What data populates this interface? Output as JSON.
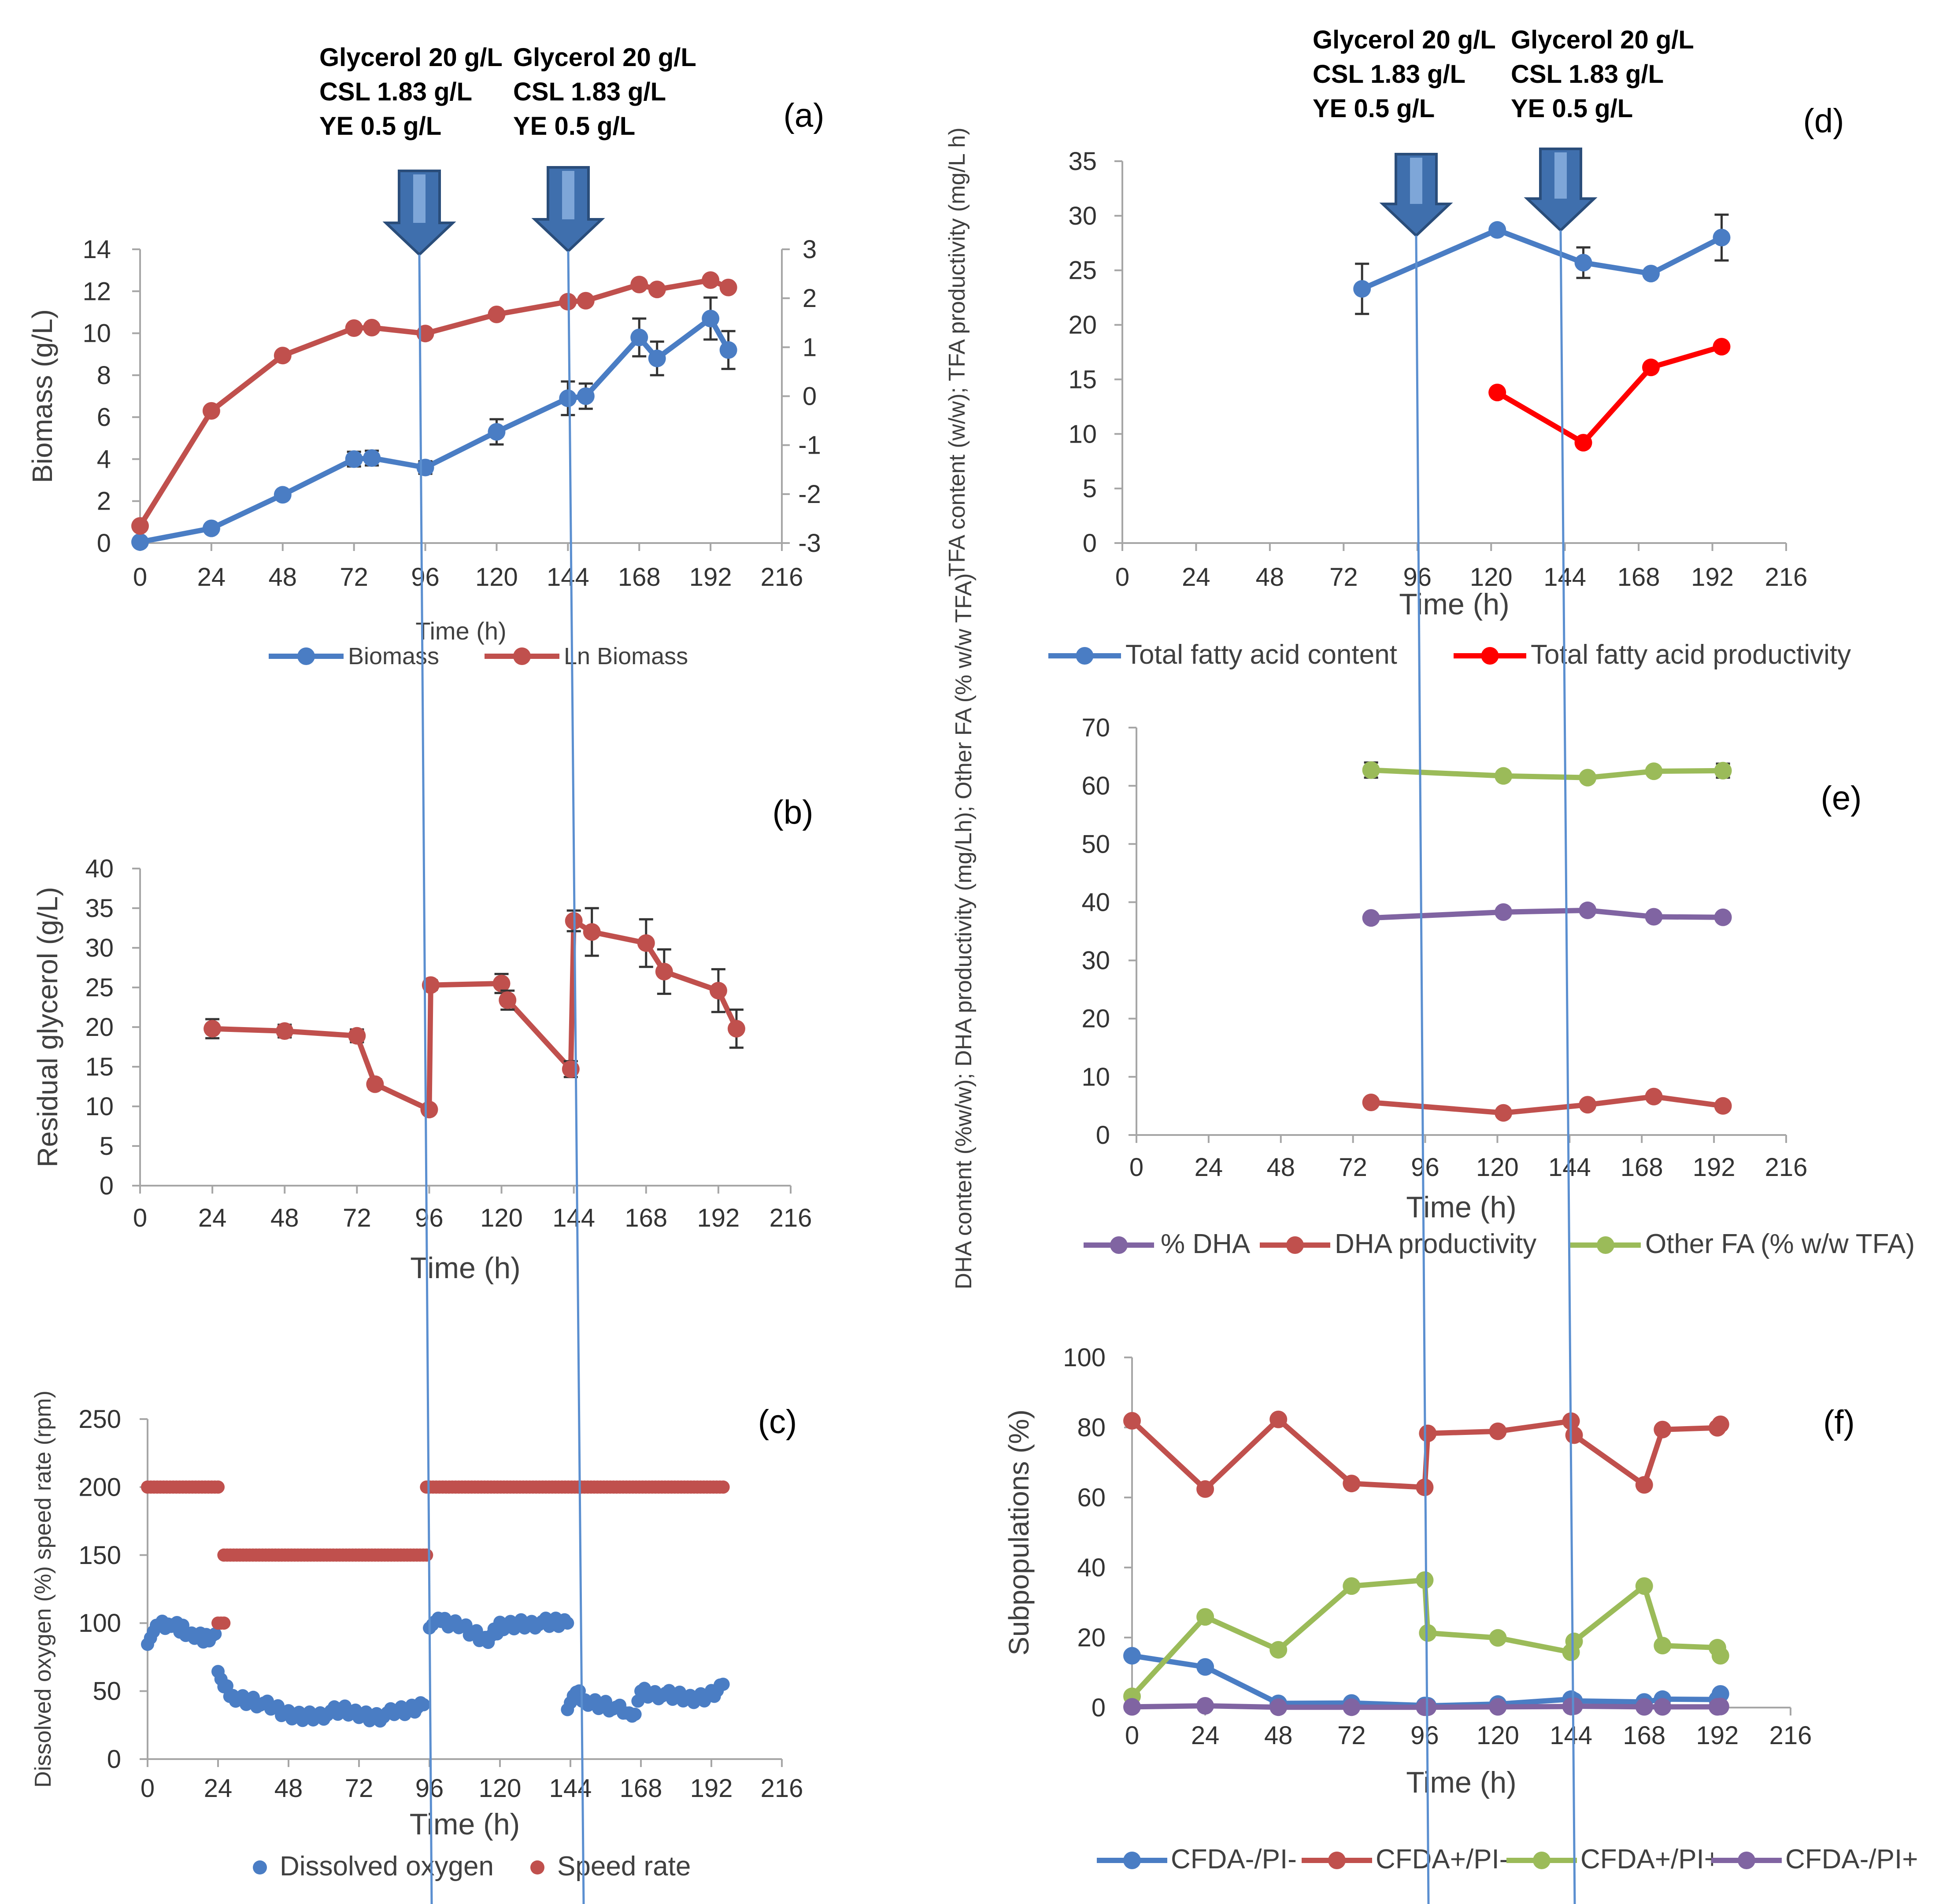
{
  "annotation": {
    "line1": "Glycerol 20 g/L",
    "line2": "CSL 1.83 g/L",
    "line3": "YE 0.5 g/L"
  },
  "colors": {
    "blue": "#4a7dc4",
    "red": "#c0504d",
    "bright_red": "#ff0000",
    "green": "#9bbb59",
    "purple": "#8064a2",
    "arrow": "#3f6fad",
    "line": "#5b8fd0",
    "axis": "#a6a6a6"
  },
  "chart_data": [
    {
      "id": "a",
      "panel_label": "(a)",
      "type": "line",
      "xlabel": "Time (h)",
      "ylabel": "Biomass (g/L)",
      "x_ticks": [
        "0",
        "24",
        "48",
        "72",
        "96",
        "120",
        "144",
        "168",
        "192",
        "216"
      ],
      "xlim": [
        0,
        216
      ],
      "ylim": [
        0,
        14
      ],
      "y_ticks": [
        "0",
        "2",
        "4",
        "6",
        "8",
        "10",
        "12",
        "14"
      ],
      "y2lim": [
        -3,
        3
      ],
      "y2_ticks": [
        "-3",
        "-2",
        "-1",
        "0",
        "1",
        "2",
        "3"
      ],
      "series": [
        {
          "name": "Biomass",
          "color": "#4a7dc4",
          "axis": "left",
          "x": [
            0,
            24,
            48,
            72,
            78,
            96,
            120,
            144,
            150,
            168,
            174,
            192,
            198
          ],
          "y": [
            0.05,
            0.7,
            2.3,
            4.0,
            4.05,
            3.6,
            5.3,
            6.9,
            7.0,
            9.8,
            8.8,
            10.7,
            9.2
          ],
          "err": [
            0,
            0,
            0,
            0.35,
            0.35,
            0.3,
            0.6,
            0.8,
            0.6,
            0.9,
            0.8,
            1.0,
            0.9
          ]
        },
        {
          "name": "Ln Biomass",
          "color": "#c0504d",
          "axis": "right",
          "x": [
            0,
            24,
            48,
            72,
            78,
            96,
            120,
            144,
            150,
            168,
            174,
            192,
            198
          ],
          "y": [
            -2.65,
            -0.3,
            0.83,
            1.39,
            1.4,
            1.28,
            1.67,
            1.93,
            1.95,
            2.28,
            2.18,
            2.37,
            2.22
          ]
        }
      ]
    },
    {
      "id": "b",
      "panel_label": "(b)",
      "type": "line",
      "xlabel": "Time  (h)",
      "ylabel": "Residual glycerol  (g/L)",
      "x_ticks": [
        "0",
        "24",
        "48",
        "72",
        "96",
        "120",
        "144",
        "168",
        "192",
        "216"
      ],
      "xlim": [
        0,
        216
      ],
      "ylim": [
        0,
        40
      ],
      "y_ticks": [
        "0",
        "5",
        "10",
        "15",
        "20",
        "25",
        "30",
        "35",
        "40"
      ],
      "series": [
        {
          "name": "Residual glycerol",
          "color": "#c0504d",
          "axis": "left",
          "x": [
            24,
            48,
            72,
            78,
            96,
            96.5,
            120,
            122,
            143,
            144,
            150,
            168,
            174,
            192,
            198
          ],
          "y": [
            19.8,
            19.5,
            18.9,
            12.8,
            9.6,
            25.3,
            25.5,
            23.4,
            14.7,
            33.4,
            32.0,
            30.6,
            27.0,
            24.6,
            19.8
          ],
          "err": [
            1.2,
            0.8,
            0.8,
            0.6,
            0.5,
            0.6,
            1.2,
            1.2,
            1.0,
            1.3,
            3.0,
            3.0,
            2.8,
            2.7,
            2.4
          ]
        }
      ]
    },
    {
      "id": "c",
      "panel_label": "(c)",
      "type": "scatter",
      "xlabel": "Time (h)",
      "ylabel": "Dissolved oxygen (%) speed rate (rpm)",
      "x_ticks": [
        "0",
        "24",
        "48",
        "72",
        "96",
        "120",
        "144",
        "168",
        "192",
        "216"
      ],
      "xlim": [
        0,
        216
      ],
      "ylim": [
        0,
        250
      ],
      "y_ticks": [
        "0",
        "50",
        "100",
        "150",
        "200",
        "250"
      ],
      "series": [
        {
          "name": "Dissolved oxygen",
          "color": "#4a7dc4",
          "segments": [
            {
              "x": [
                0,
                4,
                8,
                12,
                16,
                20,
                23
              ],
              "y": [
                88,
                97,
                100,
                96,
                90,
                88,
                92
              ]
            },
            {
              "x": [
                24,
                26,
                30,
                36,
                42,
                48,
                54,
                60,
                66,
                72,
                78,
                84,
                90,
                94
              ],
              "y": [
                68,
                52,
                45,
                43,
                38,
                32,
                32,
                33,
                36,
                33,
                31,
                34,
                36,
                40
              ]
            },
            {
              "x": [
                96,
                100,
                106,
                112,
                116,
                120,
                126,
                132,
                138,
                143
              ],
              "y": [
                100,
                100,
                99,
                92,
                87,
                97,
                100,
                100,
                100,
                100
              ]
            },
            {
              "x": [
                143,
                146,
                150,
                156,
                162,
                165,
                168,
                174,
                180,
                186,
                192,
                196
              ],
              "y": [
                40,
                48,
                42,
                40,
                35,
                28,
                50,
                48,
                46,
                44,
                48,
                55
              ]
            }
          ]
        },
        {
          "name": "Speed rate",
          "color": "#c0504d",
          "segments": [
            {
              "x": [
                0,
                24
              ],
              "y": [
                200,
                200
              ]
            },
            {
              "x": [
                24,
                26
              ],
              "y": [
                100,
                100
              ]
            },
            {
              "x": [
                26,
                95
              ],
              "y": [
                150,
                150
              ]
            },
            {
              "x": [
                95,
                196
              ],
              "y": [
                200,
                200
              ]
            }
          ]
        }
      ]
    },
    {
      "id": "d",
      "panel_label": "(d)",
      "type": "line",
      "xlabel": "Time (h)",
      "ylabel": "TFA content (w/w); TFA productivity (mg/L h)",
      "x_ticks": [
        "0",
        "24",
        "48",
        "72",
        "96",
        "120",
        "144",
        "168",
        "192",
        "216"
      ],
      "xlim": [
        0,
        216
      ],
      "ylim": [
        0,
        35
      ],
      "y_ticks": [
        "0",
        "5",
        "10",
        "15",
        "20",
        "25",
        "30",
        "35"
      ],
      "series": [
        {
          "name": "Total fatty acid content",
          "color": "#4a7dc4",
          "x": [
            78,
            122,
            150,
            172,
            195
          ],
          "y": [
            23.3,
            28.7,
            25.7,
            24.7,
            28.0
          ],
          "err": [
            2.3,
            0.3,
            1.4,
            0.4,
            2.1
          ]
        },
        {
          "name": "Total fatty acid productivity",
          "color": "#ff0000",
          "x": [
            122,
            150,
            172,
            195
          ],
          "y": [
            13.8,
            9.2,
            16.1,
            18.0
          ]
        }
      ]
    },
    {
      "id": "e",
      "panel_label": "(e)",
      "type": "line",
      "xlabel": "Time (h)",
      "ylabel": "DHA content (%w/w); DHA productivity (mg/Lh); Other FA (% w/w TFA)",
      "x_ticks": [
        "0",
        "24",
        "48",
        "72",
        "96",
        "120",
        "144",
        "168",
        "192",
        "216"
      ],
      "xlim": [
        0,
        216
      ],
      "ylim": [
        0,
        70
      ],
      "y_ticks": [
        "0",
        "10",
        "20",
        "30",
        "40",
        "50",
        "60",
        "70"
      ],
      "series": [
        {
          "name": "% DHA",
          "color": "#8064a2",
          "x": [
            78,
            122,
            150,
            172,
            195
          ],
          "y": [
            37.3,
            38.3,
            38.6,
            37.5,
            37.4
          ]
        },
        {
          "name": "DHA productivity",
          "color": "#c0504d",
          "x": [
            78,
            122,
            150,
            172,
            195
          ],
          "y": [
            5.6,
            3.8,
            5.2,
            6.6,
            5.0
          ]
        },
        {
          "name": "Other FA (% w/w TFA)",
          "color": "#9bbb59",
          "x": [
            78,
            122,
            150,
            172,
            195
          ],
          "y": [
            62.7,
            61.7,
            61.4,
            62.5,
            62.6
          ],
          "err": [
            1.3,
            0,
            0,
            0,
            1.2
          ]
        }
      ]
    },
    {
      "id": "f",
      "panel_label": "(f)",
      "type": "line",
      "xlabel": "Time (h)",
      "ylabel": "Subpopulations (%)",
      "x_ticks": [
        "0",
        "24",
        "48",
        "72",
        "96",
        "120",
        "144",
        "168",
        "192",
        "216"
      ],
      "xlim": [
        0,
        216
      ],
      "ylim": [
        0,
        100
      ],
      "y_ticks": [
        "0",
        "20",
        "40",
        "60",
        "80",
        "100"
      ],
      "series": [
        {
          "name": "CFDA-/PI-",
          "color": "#4a7dc4",
          "x": [
            0,
            24,
            48,
            72,
            96,
            97,
            120,
            144,
            145,
            168,
            174,
            192,
            193
          ],
          "y": [
            14.8,
            11.6,
            1.2,
            1.3,
            0.6,
            0.5,
            1.0,
            2.4,
            1.9,
            1.6,
            2.4,
            2.3,
            3.9
          ]
        },
        {
          "name": "CFDA+/PI-",
          "color": "#c0504d",
          "x": [
            0,
            24,
            48,
            72,
            96,
            97,
            120,
            144,
            145,
            168,
            174,
            192,
            193
          ],
          "y": [
            81.9,
            62.4,
            82.3,
            64.0,
            62.9,
            78.3,
            78.9,
            81.8,
            77.8,
            63.6,
            79.4,
            79.9,
            80.9
          ]
        },
        {
          "name": "CFDA+/PI+",
          "color": "#9bbb59",
          "x": [
            0,
            24,
            48,
            72,
            96,
            97,
            120,
            144,
            145,
            168,
            174,
            192,
            193
          ],
          "y": [
            3.2,
            25.9,
            16.5,
            34.7,
            36.4,
            21.3,
            19.9,
            15.8,
            18.9,
            34.7,
            17.7,
            17.1,
            14.8
          ]
        },
        {
          "name": "CFDA-/PI+",
          "color": "#8064a2",
          "x": [
            0,
            24,
            48,
            72,
            96,
            97,
            120,
            144,
            145,
            168,
            174,
            192,
            193
          ],
          "y": [
            0.2,
            0.5,
            0.1,
            0.1,
            0.1,
            0.1,
            0.2,
            0.3,
            0.4,
            0.2,
            0.2,
            0.2,
            0.3
          ]
        }
      ]
    }
  ]
}
